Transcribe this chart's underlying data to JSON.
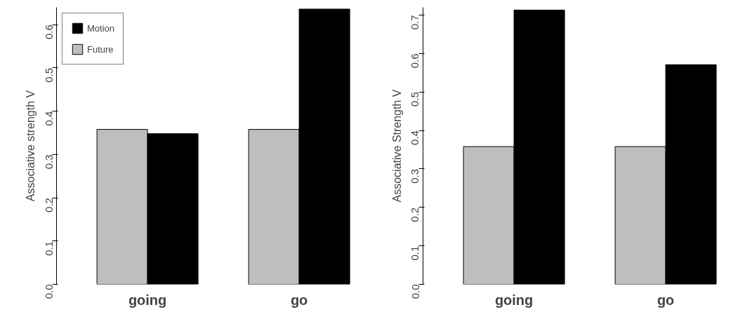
{
  "chart_data": [
    {
      "type": "bar",
      "ylabel": "Associative strength V",
      "categories": [
        "going",
        "go"
      ],
      "series": [
        {
          "name": "Future",
          "color": "#bebebe",
          "values": [
            0.358,
            0.358
          ]
        },
        {
          "name": "Motion",
          "color": "#000000",
          "values": [
            0.348,
            0.636
          ]
        }
      ],
      "ylim": [
        0,
        0.64
      ],
      "yticks": [
        {
          "value": 0,
          "label": "0.0"
        },
        0.1,
        0.2,
        0.3,
        0.4,
        0.5,
        0.6
      ],
      "legend": "top left",
      "grid": false
    },
    {
      "type": "bar",
      "ylabel": "Associative Strength V",
      "categories": [
        "going",
        "go"
      ],
      "series": [
        {
          "color": "#bebebe",
          "values": [
            0.358,
            0.358
          ]
        },
        {
          "color": "#000000",
          "values": [
            0.713,
            0.571
          ]
        }
      ],
      "ylim": [
        0,
        0.72
      ],
      "yticks": [
        {
          "value": 0,
          "label": "0.0"
        },
        0.1,
        0.2,
        0.3,
        0.4,
        0.5,
        0.6,
        0.7
      ],
      "grid": false
    }
  ]
}
